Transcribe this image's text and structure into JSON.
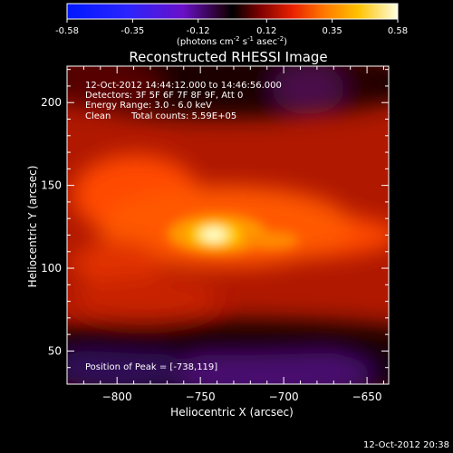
{
  "footer": {
    "timestamp": "12-Oct-2012 20:38"
  },
  "colorbar": {
    "ticks": [
      "-0.58",
      "-0.35",
      "-0.12",
      "0.12",
      "0.35",
      "0.58"
    ],
    "range": [
      -0.58,
      0.58
    ],
    "label": "(photons cm",
    "label_sup1": "-2",
    "label_mid": " s",
    "label_sup2": "-1",
    "label_end": " asec",
    "label_sup3": "-2",
    "label_close": ")"
  },
  "chart_data": {
    "type": "heatmap",
    "title": "Reconstructed RHESSI Image",
    "xlabel": "Heliocentric X (arcsec)",
    "ylabel": "Heliocentric Y (arcsec)",
    "xlim": [
      -830,
      -637
    ],
    "ylim": [
      30,
      222
    ],
    "xticks": [
      -800,
      -750,
      -700,
      -650
    ],
    "xtick_labels": [
      "−800",
      "−750",
      "−700",
      "−650"
    ],
    "yticks": [
      50,
      100,
      150,
      200
    ],
    "ytick_labels": [
      "50",
      "100",
      "150",
      "200"
    ],
    "peak": [
      -738,
      119
    ],
    "annotations": {
      "time_range": "12-Oct-2012 14:44:12.000 to 14:46:56.000",
      "detectors": "Detectors: 3F 5F 6F 7F 8F 9F, Att 0",
      "energy": "Energy Range: 3.0 - 6.0 keV",
      "method": "Clean",
      "counts": "Total counts: 5.59E+05",
      "peak_text": "Position of Peak = [-738,119]"
    },
    "colorscale": "rhessi-blue-purple-red-yellow-white"
  }
}
